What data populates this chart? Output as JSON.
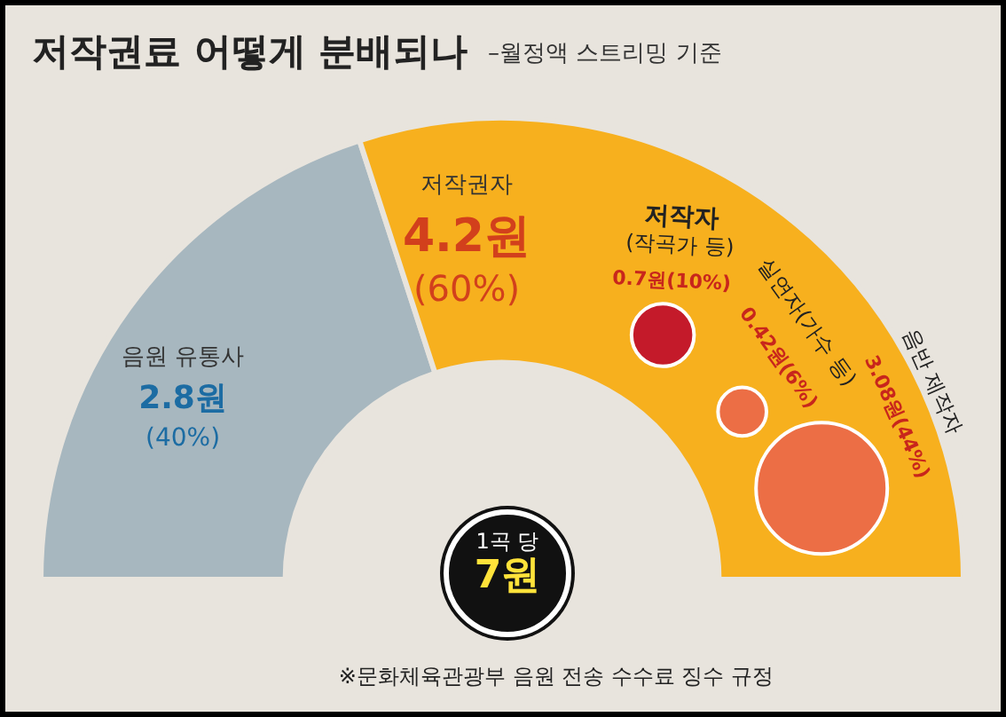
{
  "chart_data": [
    {
      "type": "donut",
      "title": "저작권료 어떻게 분배되나",
      "subtitle": "–월정액 스트리밍 기준",
      "categories": [
        "음원 유통사",
        "저작권자"
      ],
      "values": [
        2.8,
        4.2
      ],
      "colors": [
        "#a7b7bf",
        "#f7b01e"
      ],
      "value_labels": [
        "2.8원\n(40%)",
        "4.2원\n(60%)"
      ],
      "annotations": [
        "1곡 당\n7원",
        "※문화체육관광부 음원 전송 수수료 징수 규정"
      ]
    },
    {
      "type": "other",
      "categories": [
        "저작자\n(작곡가 등)",
        "실연자(가수 등)",
        "음반 제작자"
      ],
      "values": [
        0.7,
        0.42,
        3.08
      ],
      "colors": [
        "#c41a2a",
        "#ec6e45",
        "#ec6e45"
      ],
      "value_labels": [
        "0.7원(10%)",
        "0.42원(6%)",
        "3.08원(44%)"
      ]
    }
  ]
}
